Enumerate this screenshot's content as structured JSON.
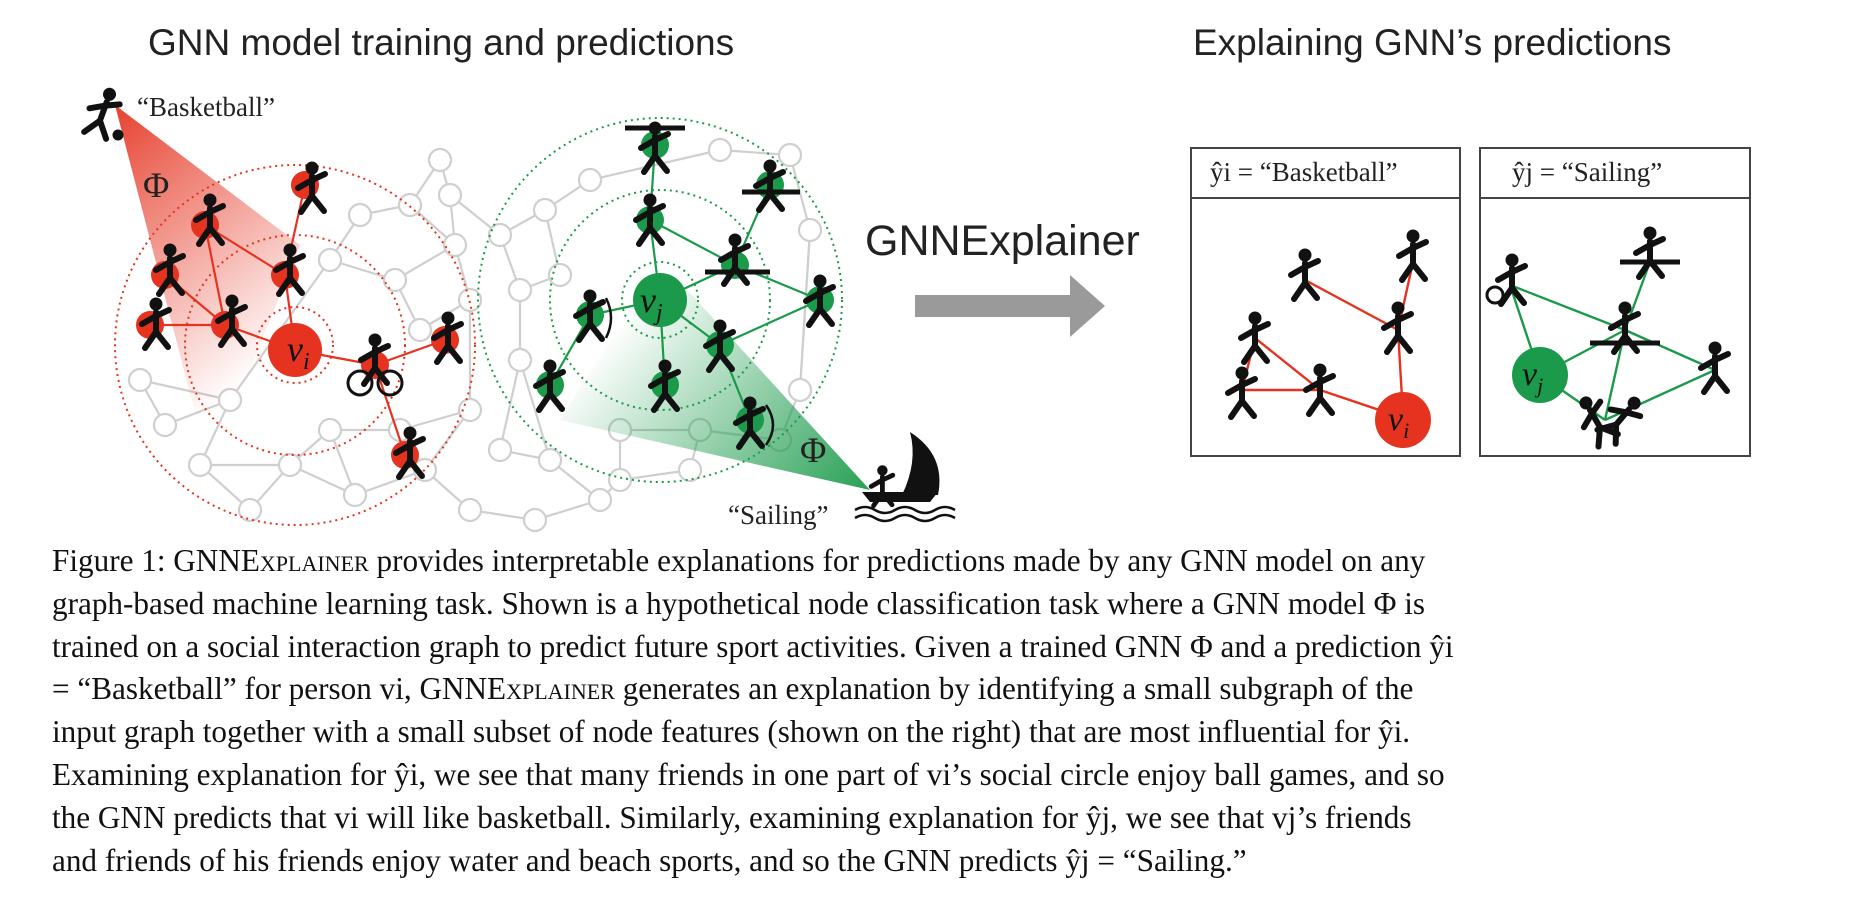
{
  "panels": {
    "left_title": "GNN model training and predictions",
    "right_title": "Explaining GNN’s predictions",
    "arrow_label": "GNNExplainer",
    "phi_symbol": "Φ",
    "node_vi": "v",
    "node_vi_sub": "i",
    "node_vj": "v",
    "node_vj_sub": "j",
    "basketball_quote": "“Basketball”",
    "sailing_quote": "“Sailing”",
    "box_i_label": "ŷi = “Basketball”",
    "box_j_label": "ŷj = “Sailing”"
  },
  "caption": {
    "lines": [
      [
        "Figure 1: ",
        "GNNExplainer",
        " provides interpretable explanations for predictions made by any GNN model on any"
      ],
      [
        "graph-based machine learning task. Shown is a hypothetical node classification task where a GNN model Φ is"
      ],
      [
        "trained on a social interaction graph to predict future sport activities. Given a trained GNN Φ and a prediction ŷi"
      ],
      [
        "= “Basketball” for person vi, ",
        "GNNExplainer",
        " generates an explanation by identifying a small subgraph of the"
      ],
      [
        "input graph together with a small subset of node features (shown on the right) that are most influential for ŷi."
      ],
      [
        "Examining explanation for ŷi, we see that many friends in one part of vi’s social circle enjoy ball games, and so"
      ],
      [
        "the GNN predicts that vi will like basketball. Similarly, examining explanation for ŷj, we see that vj’s friends"
      ],
      [
        "and friends of his friends enjoy water and beach sports, and so the GNN predicts ŷj = “Sailing.”"
      ]
    ]
  },
  "colors": {
    "red_node": "#e53320",
    "green_node": "#1a9a4a",
    "gray_graph": "#cfcfcf",
    "arrow_gray": "#9a9a9a"
  },
  "icons": [
    "basketball-player-icon",
    "sailing-boat-icon",
    "athlete-icon",
    "cyclist-icon",
    "rower-icon",
    "archer-icon",
    "weightlifter-icon",
    "tennis-player-icon",
    "wrestlers-icon"
  ]
}
